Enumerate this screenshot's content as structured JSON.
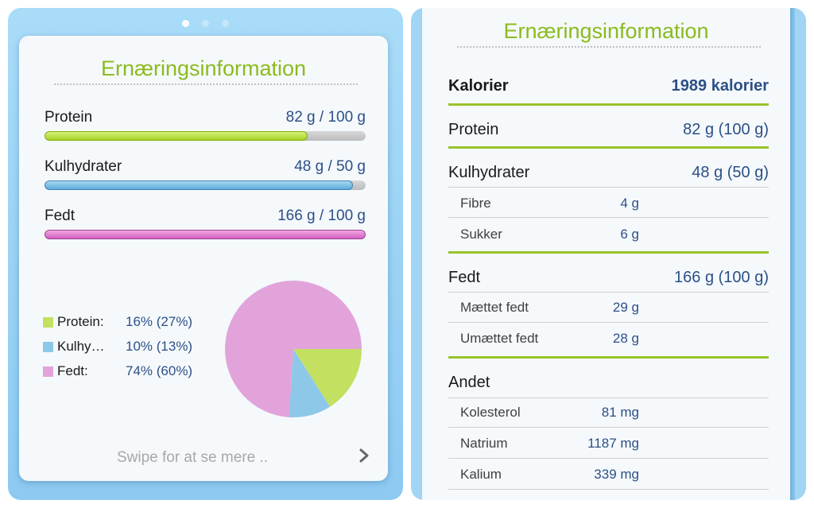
{
  "left": {
    "title": "Ernæringsinformation",
    "bars": [
      {
        "label": "Protein",
        "value": "82 g / 100 g",
        "fill_fraction": 0.82
      },
      {
        "label": "Kulhydrater",
        "value": "48 g / 50 g",
        "fill_fraction": 0.96
      },
      {
        "label": "Fedt",
        "value": "166 g / 100 g",
        "fill_fraction": 1.0
      }
    ],
    "legend": [
      {
        "name": "Protein:",
        "pct": "16% (27%)",
        "color": "#c3e061"
      },
      {
        "name": "Kulhy…",
        "pct": "10% (13%)",
        "color": "#8ec8e8"
      },
      {
        "name": "Fedt:",
        "pct": "74% (60%)",
        "color": "#e2a3db"
      }
    ],
    "pie": {
      "slices": [
        {
          "name": "Protein",
          "percent": 16,
          "color": "#c3e061"
        },
        {
          "name": "Kulhydrater",
          "percent": 10,
          "color": "#8ec8e8"
        },
        {
          "name": "Fedt",
          "percent": 74,
          "color": "#e2a3db"
        }
      ]
    },
    "swipe_hint": "Swipe for at se mere ..",
    "chevron_icon": "chevron-right-icon",
    "page_indicator": {
      "count": 3,
      "active": 0
    }
  },
  "right": {
    "title": "Ernæringsinformation",
    "calories": {
      "label": "Kalorier",
      "value": "1989 kalorier"
    },
    "protein": {
      "label": "Protein",
      "value": "82 g (100 g)"
    },
    "carbs": {
      "label": "Kulhydrater",
      "value": "48 g (50 g)",
      "sub": [
        {
          "label": "Fibre",
          "value": "4 g"
        },
        {
          "label": "Sukker",
          "value": "6 g"
        }
      ]
    },
    "fat": {
      "label": "Fedt",
      "value": "166 g (100 g)",
      "sub": [
        {
          "label": "Mættet fedt",
          "value": "29 g"
        },
        {
          "label": "Umættet fedt",
          "value": "28 g"
        }
      ]
    },
    "other": {
      "label": "Andet",
      "sub": [
        {
          "label": "Kolesterol",
          "value": "81 mg"
        },
        {
          "label": "Natrium",
          "value": "1187 mg"
        },
        {
          "label": "Kalium",
          "value": "339 mg"
        }
      ]
    }
  }
}
